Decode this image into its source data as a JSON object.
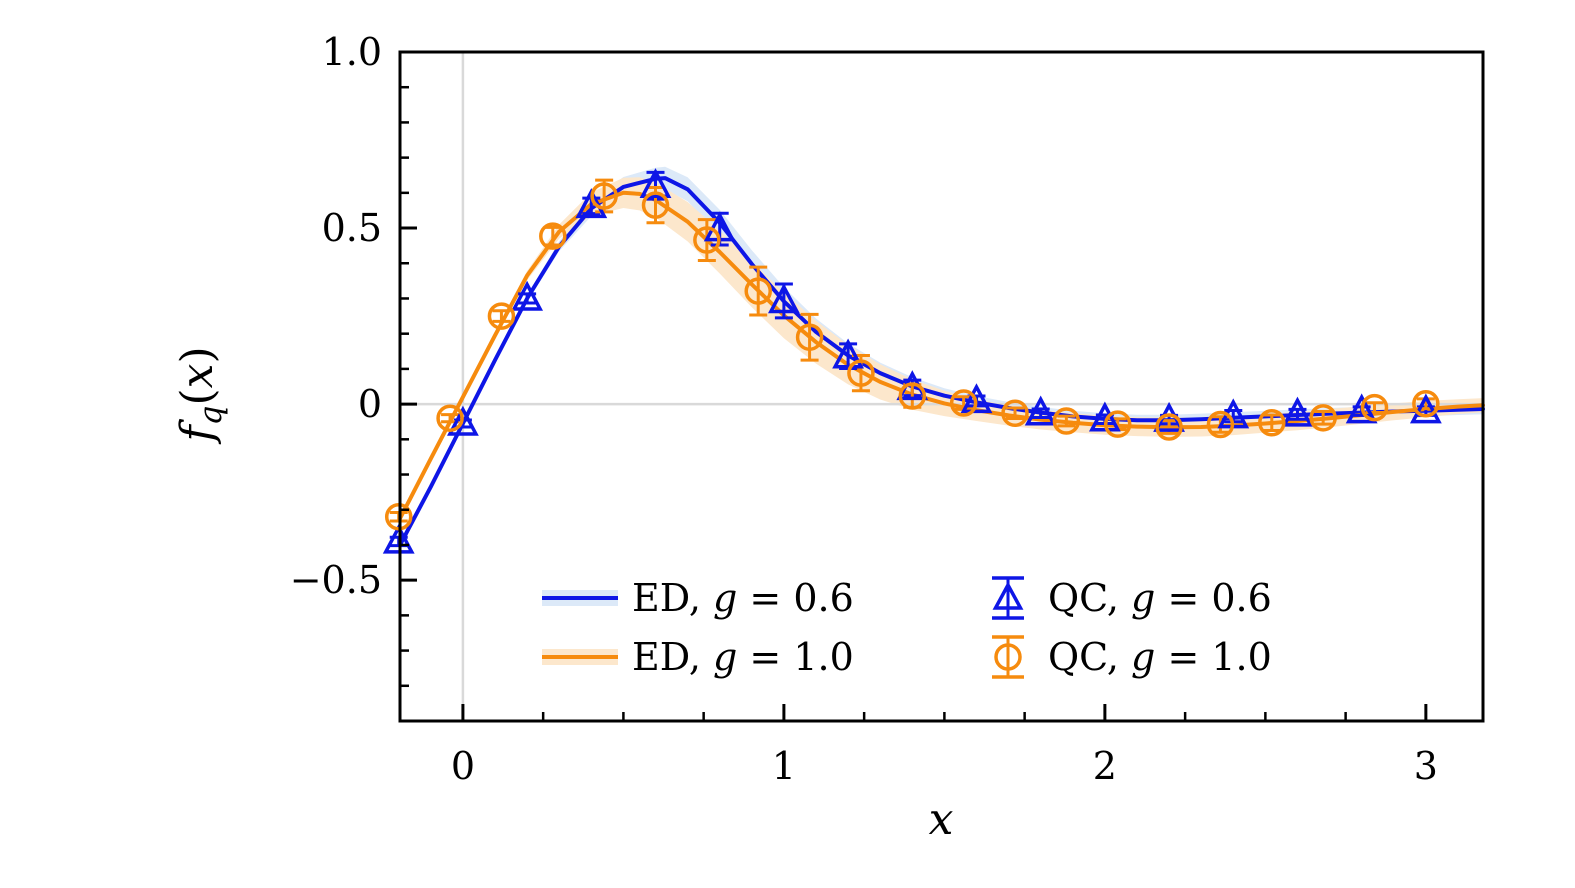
{
  "colors": {
    "blue": "#0e16e6",
    "orange": "#f68b0e",
    "blue_band": "#dce9f8",
    "orange_band": "#fce7cc",
    "grid": "#d9d9d9",
    "axis": "#000000"
  },
  "axes": {
    "xlim": [
      -0.196,
      3.178
    ],
    "ylim": [
      -0.9,
      1.0
    ],
    "x_major_ticks": [
      0,
      1,
      2,
      3
    ],
    "x_tick_labels": [
      "0",
      "1",
      "2",
      "3"
    ],
    "x_minor_step": 0.25,
    "y_major_ticks": [
      -0.5,
      0,
      0.5,
      1.0
    ],
    "y_tick_labels": [
      "−0.5",
      "0",
      "0.5",
      "1.0"
    ],
    "y_minor_step": 0.1,
    "grid_x": [
      0
    ],
    "grid_y": [
      0
    ]
  },
  "xlabel": {
    "var": "x"
  },
  "ylabel": {
    "f": "f",
    "sub": "q",
    "open": "(",
    "var": "x",
    "close": ")"
  },
  "legend": {
    "items": [
      {
        "pre": "ED, ",
        "sym": "g",
        "post": " = 0.6"
      },
      {
        "pre": "QC, ",
        "sym": "g",
        "post": " = 0.6"
      },
      {
        "pre": "ED, ",
        "sym": "g",
        "post": " = 1.0"
      },
      {
        "pre": "QC, ",
        "sym": "g",
        "post": " = 1.0"
      }
    ]
  },
  "chart_data": {
    "type": "line",
    "title": "",
    "xlabel": "x",
    "ylabel": "f_q(x)",
    "xlim": [
      -0.196,
      3.178
    ],
    "ylim": [
      -0.9,
      1.0
    ],
    "grid": {
      "x_lines": [
        0
      ],
      "y_lines": [
        0
      ]
    },
    "legend_position": "lower center",
    "series": [
      {
        "name": "ED, g = 0.6",
        "kind": "line_with_band",
        "color_key": "blue",
        "band_key": "blue_band",
        "x": [
          -0.196,
          -0.1,
          0,
          0.1,
          0.2,
          0.3,
          0.4,
          0.5,
          0.6,
          0.63,
          0.7,
          0.8,
          0.9,
          1.0,
          1.1,
          1.2,
          1.3,
          1.4,
          1.5,
          1.6,
          1.7,
          1.8,
          1.9,
          2.0,
          2.1,
          2.2,
          2.3,
          2.4,
          2.5,
          2.6,
          2.7,
          2.8,
          2.9,
          3.0,
          3.1,
          3.178
        ],
        "y": [
          -0.4,
          -0.235,
          -0.055,
          0.125,
          0.3,
          0.448,
          0.556,
          0.617,
          0.64,
          0.642,
          0.61,
          0.515,
          0.398,
          0.292,
          0.205,
          0.138,
          0.088,
          0.05,
          0.024,
          0.005,
          -0.011,
          -0.024,
          -0.035,
          -0.042,
          -0.046,
          -0.046,
          -0.043,
          -0.039,
          -0.035,
          -0.031,
          -0.027,
          -0.024,
          -0.021,
          -0.019,
          -0.016,
          -0.014
        ],
        "band": [
          0.006,
          0.006,
          0.006,
          0.008,
          0.01,
          0.014,
          0.022,
          0.028,
          0.031,
          0.032,
          0.034,
          0.037,
          0.039,
          0.04,
          0.038,
          0.034,
          0.03,
          0.026,
          0.021,
          0.018,
          0.017,
          0.016,
          0.016,
          0.016,
          0.016,
          0.016,
          0.016,
          0.016,
          0.016,
          0.016,
          0.016,
          0.016,
          0.016,
          0.016,
          0.015,
          0.015
        ]
      },
      {
        "name": "ED, g = 1.0",
        "kind": "line_with_band",
        "color_key": "orange",
        "band_key": "orange_band",
        "x": [
          -0.196,
          -0.1,
          0,
          0.1,
          0.2,
          0.3,
          0.4,
          0.5,
          0.55,
          0.6,
          0.7,
          0.8,
          0.9,
          1.0,
          1.1,
          1.2,
          1.3,
          1.4,
          1.5,
          1.6,
          1.7,
          1.8,
          1.9,
          2.0,
          2.1,
          2.2,
          2.3,
          2.4,
          2.5,
          2.6,
          2.7,
          2.8,
          2.9,
          3.0,
          3.1,
          3.178
        ],
        "y": [
          -0.325,
          -0.155,
          0.02,
          0.195,
          0.365,
          0.49,
          0.568,
          0.6,
          0.597,
          0.58,
          0.518,
          0.432,
          0.34,
          0.252,
          0.176,
          0.112,
          0.063,
          0.027,
          0.002,
          -0.017,
          -0.032,
          -0.044,
          -0.053,
          -0.06,
          -0.064,
          -0.066,
          -0.065,
          -0.061,
          -0.055,
          -0.048,
          -0.04,
          -0.031,
          -0.022,
          -0.014,
          -0.007,
          -0.003
        ],
        "band": [
          0.006,
          0.006,
          0.006,
          0.009,
          0.013,
          0.02,
          0.033,
          0.043,
          0.047,
          0.05,
          0.056,
          0.061,
          0.065,
          0.065,
          0.061,
          0.056,
          0.05,
          0.043,
          0.036,
          0.031,
          0.029,
          0.028,
          0.027,
          0.027,
          0.027,
          0.027,
          0.027,
          0.027,
          0.026,
          0.026,
          0.026,
          0.025,
          0.024,
          0.023,
          0.021,
          0.02
        ]
      },
      {
        "name": "QC, g = 0.6",
        "kind": "scatter_errorbar",
        "marker": "triangle",
        "color_key": "blue",
        "x": [
          -0.2,
          0,
          0.2,
          0.4,
          0.6,
          0.8,
          1.0,
          1.2,
          1.4,
          1.6,
          1.8,
          2.0,
          2.2,
          2.4,
          2.6,
          2.8,
          3.0
        ],
        "y": [
          -0.39,
          -0.055,
          0.3,
          0.563,
          0.62,
          0.497,
          0.293,
          0.136,
          0.046,
          0.009,
          -0.026,
          -0.043,
          -0.044,
          -0.034,
          -0.029,
          -0.02,
          -0.02
        ],
        "yerr": [
          0.012,
          0.01,
          0.013,
          0.022,
          0.038,
          0.045,
          0.048,
          0.035,
          0.022,
          0.014,
          0.012,
          0.012,
          0.012,
          0.016,
          0.014,
          0.012,
          0.012
        ]
      },
      {
        "name": "QC, g = 1.0",
        "kind": "scatter_errorbar",
        "marker": "circle",
        "color_key": "orange",
        "x": [
          -0.2,
          -0.04,
          0.12,
          0.28,
          0.44,
          0.6,
          0.76,
          0.92,
          1.08,
          1.24,
          1.4,
          1.56,
          1.72,
          1.88,
          2.04,
          2.2,
          2.36,
          2.52,
          2.68,
          2.84,
          3.0
        ],
        "y": [
          -0.32,
          -0.04,
          0.25,
          0.477,
          0.591,
          0.565,
          0.466,
          0.321,
          0.19,
          0.088,
          0.023,
          0.003,
          -0.026,
          -0.048,
          -0.057,
          -0.065,
          -0.058,
          -0.053,
          -0.039,
          -0.01,
          0.001
        ],
        "yerr": [
          0.012,
          0.01,
          0.015,
          0.025,
          0.045,
          0.05,
          0.058,
          0.068,
          0.065,
          0.05,
          0.032,
          0.018,
          0.015,
          0.014,
          0.015,
          0.018,
          0.022,
          0.022,
          0.018,
          0.014,
          0.014
        ]
      }
    ]
  }
}
